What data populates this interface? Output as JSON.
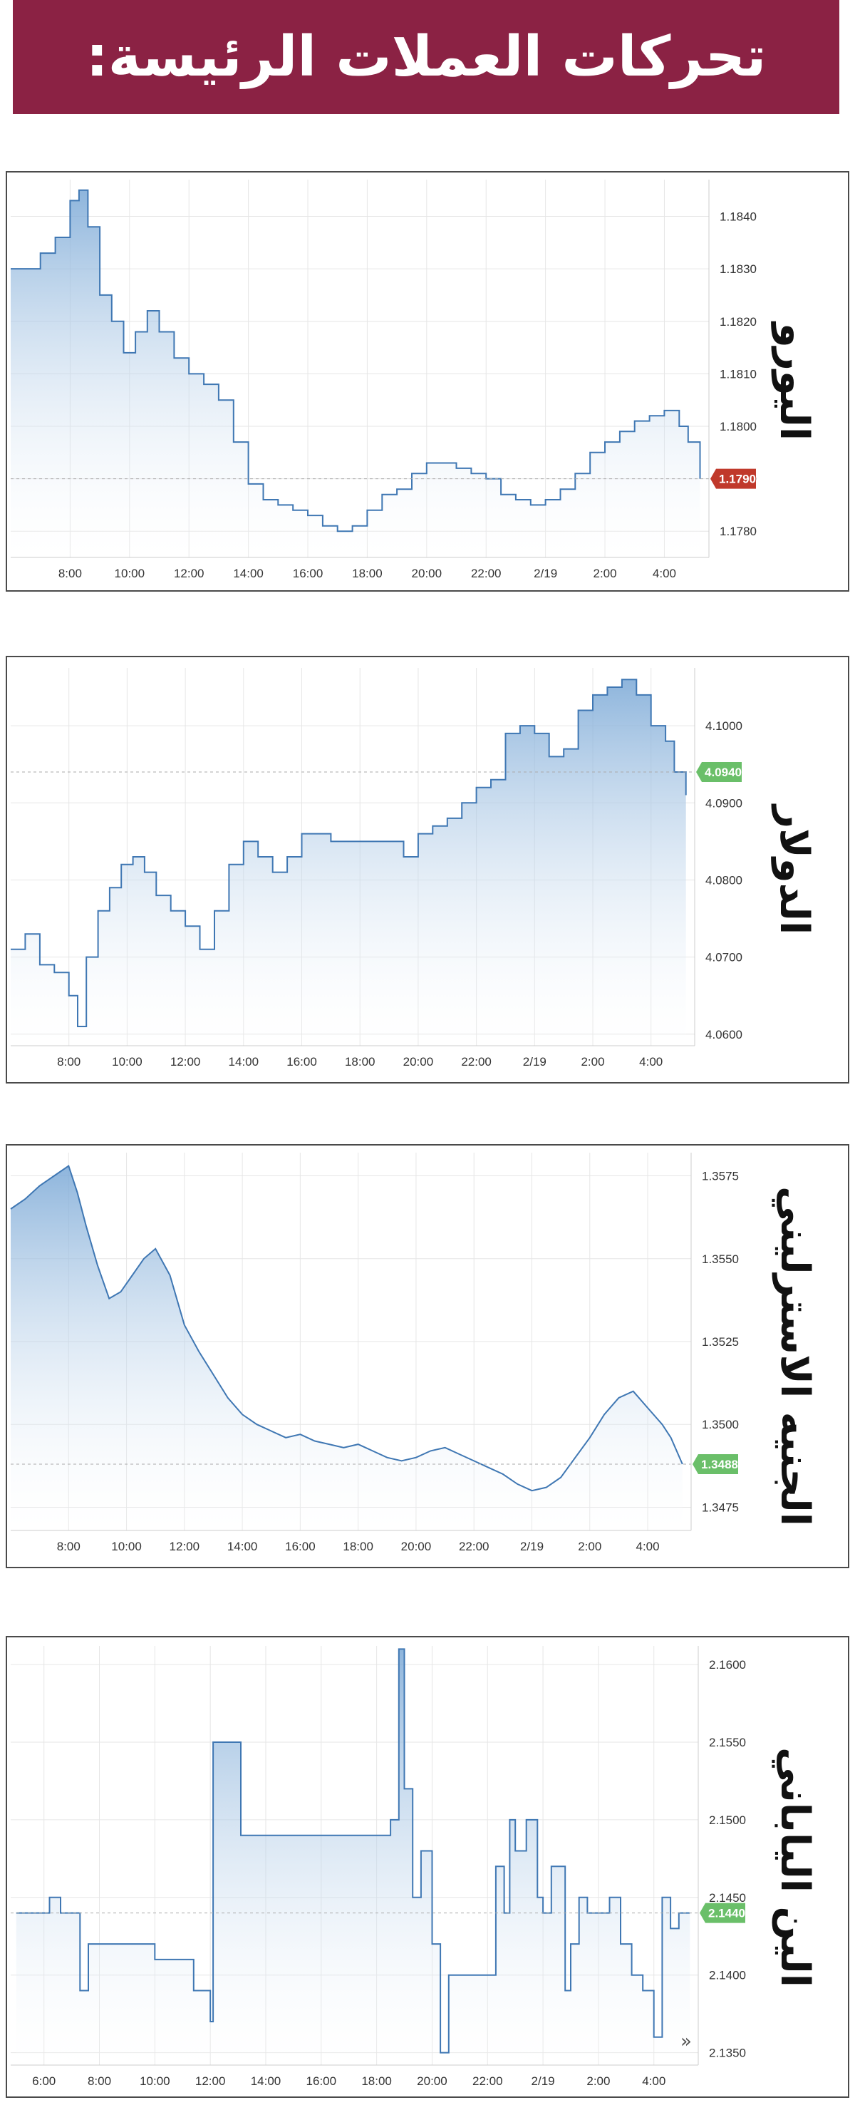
{
  "page_title": "تحركات العملات الرئيسة:",
  "chart_data": [
    {
      "type": "area",
      "label": "اليورو",
      "x_ticks": [
        "8:00",
        "10:00",
        "12:00",
        "14:00",
        "16:00",
        "18:00",
        "20:00",
        "22:00",
        "2/19",
        "2:00",
        "4:00"
      ],
      "y_ticks": [
        "1.1780",
        "1.1790",
        "1.1800",
        "1.1810",
        "1.1820",
        "1.1830",
        "1.1840"
      ],
      "ylim": [
        1.1775,
        1.1847
      ],
      "current_value": "1.1790",
      "current_color": "#c0392b",
      "line_color": "#3f77b3",
      "grid": true,
      "x": [
        6.0,
        7.0,
        7.5,
        8.0,
        8.3,
        8.6,
        9.0,
        9.4,
        9.8,
        10.2,
        10.6,
        11.0,
        11.5,
        12.0,
        12.5,
        13.0,
        13.5,
        14.0,
        14.5,
        15.0,
        15.5,
        16.0,
        16.5,
        17.0,
        17.5,
        18.0,
        18.5,
        19.0,
        19.5,
        20.0,
        20.5,
        21.0,
        21.5,
        22.0,
        22.5,
        23.0,
        23.5,
        24.0,
        24.5,
        25.0,
        25.5,
        26.0,
        26.5,
        27.0,
        27.5,
        28.0,
        28.5,
        28.8,
        29.2
      ],
      "y": [
        1.183,
        1.1833,
        1.1836,
        1.1843,
        1.1845,
        1.1838,
        1.1825,
        1.182,
        1.1814,
        1.1818,
        1.1822,
        1.1818,
        1.1813,
        1.181,
        1.1808,
        1.1805,
        1.1797,
        1.1789,
        1.1786,
        1.1785,
        1.1784,
        1.1783,
        1.1781,
        1.178,
        1.1781,
        1.1784,
        1.1787,
        1.1788,
        1.1791,
        1.1793,
        1.1793,
        1.1792,
        1.1791,
        1.179,
        1.1787,
        1.1786,
        1.1785,
        1.1786,
        1.1788,
        1.1791,
        1.1795,
        1.1797,
        1.1799,
        1.1801,
        1.1802,
        1.1803,
        1.18,
        1.1797,
        1.179
      ]
    },
    {
      "type": "area",
      "label": "الدولار",
      "x_ticks": [
        "8:00",
        "10:00",
        "12:00",
        "14:00",
        "16:00",
        "18:00",
        "20:00",
        "22:00",
        "2/19",
        "2:00",
        "4:00"
      ],
      "y_ticks": [
        "4.0600",
        "4.0700",
        "4.0800",
        "4.0900",
        "4.1000"
      ],
      "ylim": [
        4.0585,
        4.1075
      ],
      "current_value": "4.0940",
      "current_color": "#6abf69",
      "line_color": "#3f77b3",
      "grid": true,
      "x": [
        6.0,
        6.5,
        7.0,
        7.5,
        8.0,
        8.3,
        8.6,
        9.0,
        9.4,
        9.8,
        10.2,
        10.6,
        11.0,
        11.5,
        12.0,
        12.5,
        13.0,
        13.5,
        14.0,
        14.5,
        15.0,
        15.5,
        16.0,
        16.5,
        17.0,
        17.5,
        18.0,
        18.5,
        19.0,
        19.5,
        20.0,
        20.5,
        21.0,
        21.5,
        22.0,
        22.5,
        23.0,
        23.5,
        24.0,
        24.5,
        25.0,
        25.5,
        26.0,
        26.5,
        27.0,
        27.5,
        28.0,
        28.5,
        28.8,
        29.2
      ],
      "y": [
        4.071,
        4.073,
        4.069,
        4.068,
        4.065,
        4.061,
        4.07,
        4.076,
        4.079,
        4.082,
        4.083,
        4.081,
        4.078,
        4.076,
        4.074,
        4.071,
        4.076,
        4.082,
        4.085,
        4.083,
        4.081,
        4.083,
        4.086,
        4.086,
        4.085,
        4.085,
        4.085,
        4.085,
        4.085,
        4.083,
        4.086,
        4.087,
        4.088,
        4.09,
        4.092,
        4.093,
        4.099,
        4.1,
        4.099,
        4.096,
        4.097,
        4.102,
        4.104,
        4.105,
        4.106,
        4.104,
        4.1,
        4.098,
        4.094,
        4.091
      ]
    },
    {
      "type": "area",
      "label": "الجنيه الاسترليني",
      "x_ticks": [
        "8:00",
        "10:00",
        "12:00",
        "14:00",
        "16:00",
        "18:00",
        "20:00",
        "22:00",
        "2/19",
        "2:00",
        "4:00"
      ],
      "y_ticks": [
        "1.3475",
        "1.3500",
        "1.3525",
        "1.3550",
        "1.3575"
      ],
      "ylim": [
        1.3468,
        1.3582
      ],
      "current_value": "1.3488",
      "current_color": "#6abf69",
      "line_color": "#3f77b3",
      "grid": true,
      "x": [
        6.0,
        6.5,
        7.0,
        7.5,
        8.0,
        8.3,
        8.6,
        9.0,
        9.4,
        9.8,
        10.2,
        10.6,
        11.0,
        11.5,
        12.0,
        12.5,
        13.0,
        13.5,
        14.0,
        14.5,
        15.0,
        15.5,
        16.0,
        16.5,
        17.0,
        17.5,
        18.0,
        18.5,
        19.0,
        19.5,
        20.0,
        20.5,
        21.0,
        21.5,
        22.0,
        22.5,
        23.0,
        23.5,
        24.0,
        24.5,
        25.0,
        25.5,
        26.0,
        26.5,
        27.0,
        27.5,
        28.0,
        28.5,
        28.8,
        29.2
      ],
      "y": [
        1.3565,
        1.3568,
        1.3572,
        1.3575,
        1.3578,
        1.357,
        1.356,
        1.3548,
        1.3538,
        1.354,
        1.3545,
        1.355,
        1.3553,
        1.3545,
        1.353,
        1.3522,
        1.3515,
        1.3508,
        1.3503,
        1.35,
        1.3498,
        1.3496,
        1.3497,
        1.3495,
        1.3494,
        1.3493,
        1.3494,
        1.3492,
        1.349,
        1.3489,
        1.349,
        1.3492,
        1.3493,
        1.3491,
        1.3489,
        1.3487,
        1.3485,
        1.3482,
        1.348,
        1.3481,
        1.3484,
        1.349,
        1.3496,
        1.3503,
        1.3508,
        1.351,
        1.3505,
        1.35,
        1.3496,
        1.3488
      ]
    },
    {
      "type": "line",
      "label": "الين الياباني",
      "x_ticks": [
        "6:00",
        "8:00",
        "10:00",
        "12:00",
        "14:00",
        "16:00",
        "18:00",
        "20:00",
        "22:00",
        "2/19",
        "2:00",
        "4:00"
      ],
      "y_ticks": [
        "2.1350",
        "2.1400",
        "2.1450",
        "2.1500",
        "2.1550",
        "2.1600"
      ],
      "ylim": [
        2.1342,
        2.1612
      ],
      "current_value": "2.1440",
      "current_color": "#6abf69",
      "line_color": "#3f77b3",
      "grid": true,
      "x": [
        5.0,
        5.8,
        6.2,
        6.6,
        7.0,
        7.3,
        7.6,
        8.0,
        9.0,
        10.0,
        10.4,
        10.8,
        11.4,
        11.8,
        12.0,
        12.1,
        13.0,
        13.1,
        14.0,
        15.0,
        16.0,
        17.0,
        18.0,
        18.5,
        18.8,
        19.0,
        19.3,
        19.6,
        20.0,
        20.3,
        20.6,
        20.9,
        21.2,
        21.5,
        22.0,
        22.3,
        22.6,
        22.8,
        23.0,
        23.4,
        23.8,
        24.0,
        24.3,
        24.8,
        25.0,
        25.3,
        25.6,
        26.0,
        26.4,
        26.8,
        27.2,
        27.6,
        28.0,
        28.3,
        28.6,
        28.9,
        29.3
      ],
      "y": [
        2.144,
        2.144,
        2.145,
        2.144,
        2.144,
        2.139,
        2.142,
        2.142,
        2.142,
        2.141,
        2.141,
        2.141,
        2.139,
        2.139,
        2.137,
        2.155,
        2.155,
        2.149,
        2.149,
        2.149,
        2.149,
        2.149,
        2.149,
        2.15,
        2.161,
        2.152,
        2.145,
        2.148,
        2.142,
        2.135,
        2.14,
        2.14,
        2.14,
        2.14,
        2.14,
        2.147,
        2.144,
        2.15,
        2.148,
        2.15,
        2.145,
        2.144,
        2.147,
        2.139,
        2.142,
        2.145,
        2.144,
        2.144,
        2.145,
        2.142,
        2.14,
        2.139,
        2.136,
        2.145,
        2.143,
        2.144,
        2.144
      ]
    }
  ]
}
